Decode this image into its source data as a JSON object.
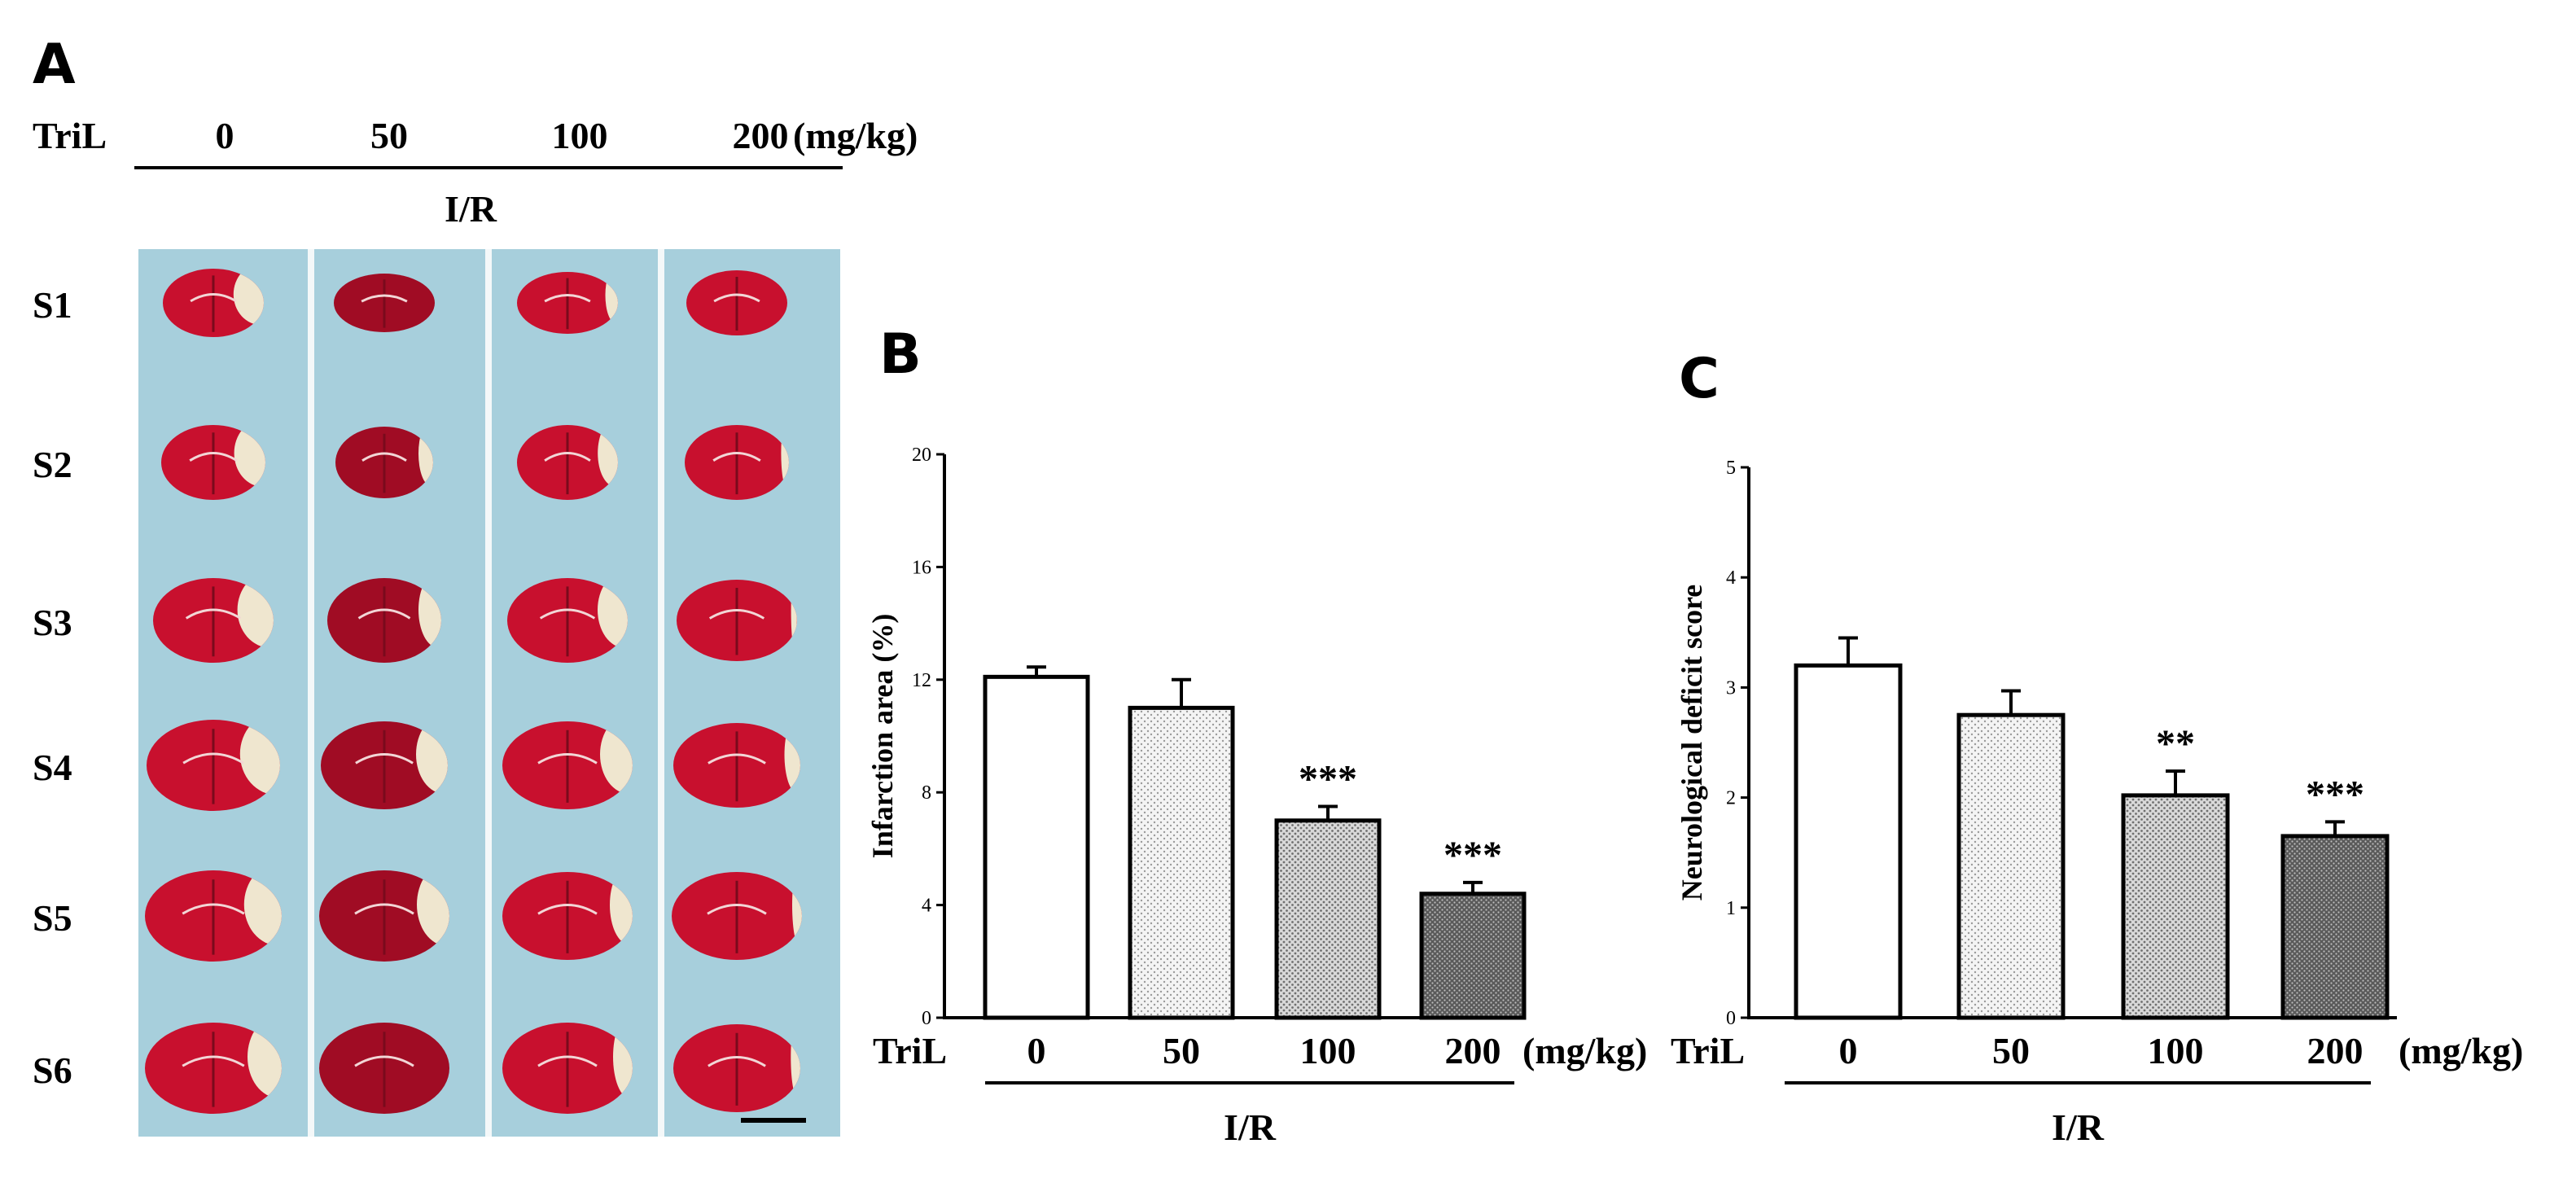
{
  "panel_a": {
    "letter": "A",
    "header_label": "TriL",
    "doses": [
      "0",
      "50",
      "100",
      "200"
    ],
    "unit": "(mg/kg)",
    "group_label": "I/R",
    "sections": [
      "S1",
      "S2",
      "S3",
      "S4",
      "S5",
      "S6"
    ],
    "colors": {
      "background": "#a7cfdc",
      "tissue": "#c8102e",
      "tissue_dark": "#a00c24",
      "infarct": "#efe6cf"
    }
  },
  "chart_data": [
    {
      "type": "bar",
      "panel": "B",
      "categories": [
        "0",
        "50",
        "100",
        "200"
      ],
      "values": [
        12.1,
        11.0,
        7.0,
        4.4
      ],
      "errors": [
        0.35,
        1.0,
        0.5,
        0.4
      ],
      "significance": [
        "",
        "",
        "***",
        "***"
      ],
      "ylabel": "Infarction area (%)",
      "ylim": [
        0,
        20
      ],
      "yticks": [
        0,
        4,
        8,
        12,
        16,
        20
      ],
      "x_prefix": "TriL",
      "x_unit": "(mg/kg)",
      "group_label": "I/R",
      "patterns": [
        "white",
        "light-dots",
        "medium-dots",
        "dark-dots"
      ]
    },
    {
      "type": "bar",
      "panel": "C",
      "categories": [
        "0",
        "50",
        "100",
        "200"
      ],
      "values": [
        3.2,
        2.75,
        2.02,
        1.65
      ],
      "errors": [
        0.25,
        0.22,
        0.22,
        0.13
      ],
      "significance": [
        "",
        "",
        "**",
        "***"
      ],
      "ylabel": "Neurological deficit score",
      "ylim": [
        0,
        5
      ],
      "yticks": [
        0,
        1,
        2,
        3,
        4,
        5
      ],
      "x_prefix": "TriL",
      "x_unit": "(mg/kg)",
      "group_label": "I/R",
      "patterns": [
        "white",
        "light-dots",
        "medium-dots",
        "dark-dots"
      ]
    }
  ]
}
